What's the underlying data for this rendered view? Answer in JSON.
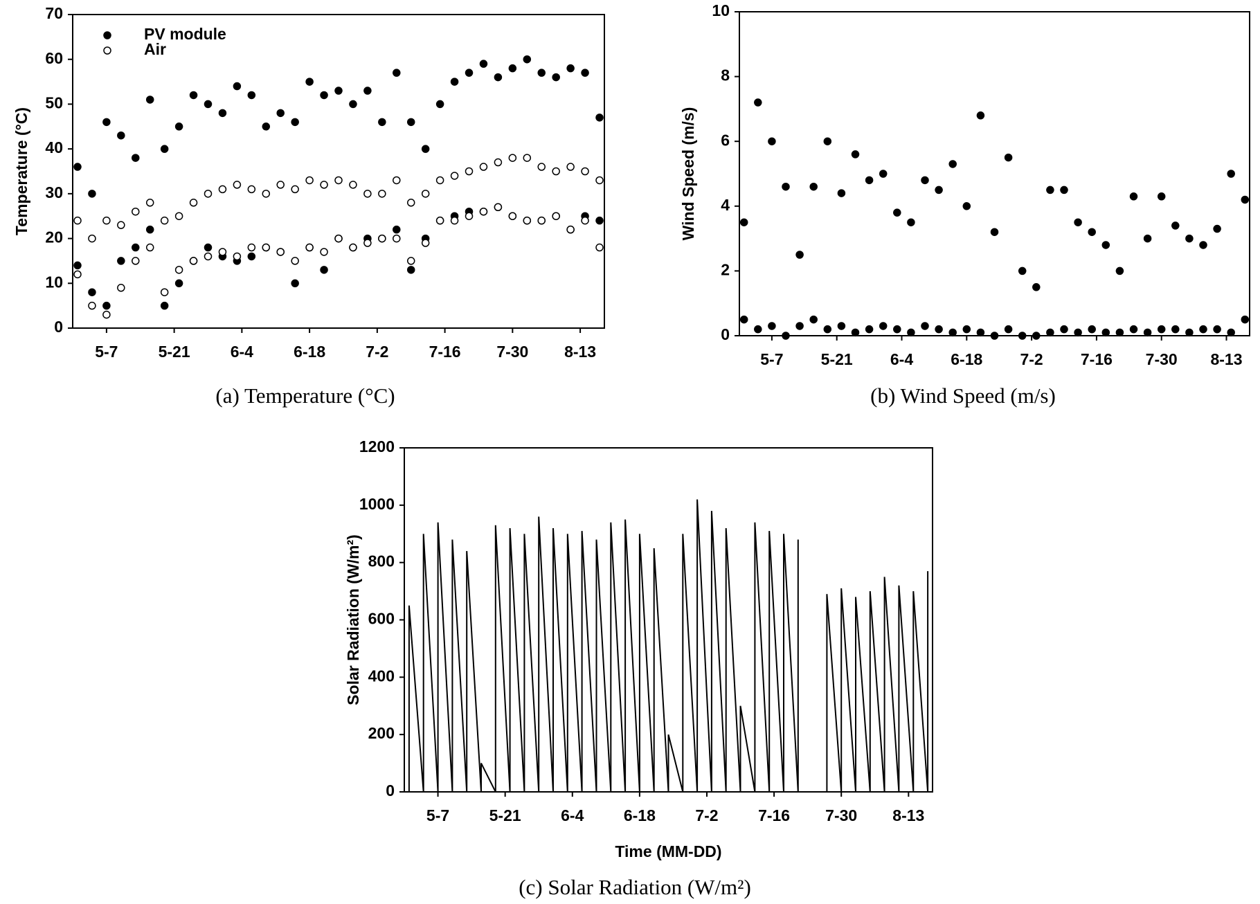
{
  "chart_data": [
    {
      "type": "scatter",
      "caption": "(a) Temperature (°C)",
      "y_label": "Temperature (°C)",
      "legend": "upper left",
      "xlim": [
        "4-30",
        "8-18"
      ],
      "xticks": [
        "5-7",
        "5-21",
        "6-4",
        "6-18",
        "7-2",
        "7-16",
        "7-30",
        "8-13"
      ],
      "ylim": [
        0,
        70
      ],
      "yticks": [
        0,
        10,
        20,
        30,
        40,
        50,
        60,
        70
      ],
      "series": [
        {
          "name": "PV module",
          "color": "#000000",
          "marker": "filled",
          "x": [
            "5-1",
            "5-1",
            "5-4",
            "5-4",
            "5-7",
            "5-7",
            "5-10",
            "5-10",
            "5-13",
            "5-13",
            "5-16",
            "5-16",
            "5-19",
            "5-19",
            "5-22",
            "5-22",
            "5-25",
            "5-25",
            "5-28",
            "5-28",
            "5-31",
            "5-31",
            "6-3",
            "6-3",
            "6-6",
            "6-6",
            "6-9",
            "6-9",
            "6-12",
            "6-12",
            "6-15",
            "6-15",
            "6-18",
            "6-18",
            "6-21",
            "6-21",
            "6-24",
            "6-24",
            "6-27",
            "6-27",
            "6-30",
            "6-30",
            "7-3",
            "7-3",
            "7-6",
            "7-6",
            "7-9",
            "7-9",
            "7-12",
            "7-12",
            "7-15",
            "7-15",
            "7-18",
            "7-18",
            "7-21",
            "7-21",
            "7-24",
            "7-24",
            "7-27",
            "7-27",
            "7-30",
            "7-30",
            "8-2",
            "8-2",
            "8-5",
            "8-5",
            "8-8",
            "8-8",
            "8-11",
            "8-11",
            "8-14",
            "8-14",
            "8-17",
            "8-17"
          ],
          "values": [
            36,
            14,
            30,
            8,
            46,
            5,
            43,
            15,
            38,
            18,
            51,
            22,
            40,
            5,
            45,
            10,
            52,
            15,
            50,
            18,
            48,
            16,
            54,
            15,
            52,
            16,
            45,
            18,
            48,
            17,
            46,
            10,
            55,
            18,
            52,
            13,
            53,
            20,
            50,
            18,
            53,
            20,
            46,
            20,
            57,
            22,
            46,
            13,
            40,
            20,
            50,
            24,
            55,
            25,
            57,
            26,
            59,
            26,
            56,
            27,
            58,
            25,
            60,
            24,
            57,
            24,
            56,
            25,
            58,
            22,
            57,
            25,
            47,
            24
          ]
        },
        {
          "name": "Air",
          "color": "#000000",
          "marker": "open",
          "x": [
            "5-1",
            "5-1",
            "5-4",
            "5-4",
            "5-7",
            "5-7",
            "5-10",
            "5-10",
            "5-13",
            "5-13",
            "5-16",
            "5-16",
            "5-19",
            "5-19",
            "5-22",
            "5-22",
            "5-25",
            "5-25",
            "5-28",
            "5-28",
            "5-31",
            "5-31",
            "6-3",
            "6-3",
            "6-6",
            "6-6",
            "6-9",
            "6-9",
            "6-12",
            "6-12",
            "6-15",
            "6-15",
            "6-18",
            "6-18",
            "6-21",
            "6-21",
            "6-24",
            "6-24",
            "6-27",
            "6-27",
            "6-30",
            "6-30",
            "7-3",
            "7-3",
            "7-6",
            "7-6",
            "7-9",
            "7-9",
            "7-12",
            "7-12",
            "7-15",
            "7-15",
            "7-18",
            "7-18",
            "7-21",
            "7-21",
            "7-24",
            "7-24",
            "7-27",
            "7-27",
            "7-30",
            "7-30",
            "8-2",
            "8-2",
            "8-5",
            "8-5",
            "8-8",
            "8-8",
            "8-11",
            "8-11",
            "8-14",
            "8-14",
            "8-17",
            "8-17"
          ],
          "values": [
            24,
            12,
            20,
            5,
            24,
            3,
            23,
            9,
            26,
            15,
            28,
            18,
            24,
            8,
            25,
            13,
            28,
            15,
            30,
            16,
            31,
            17,
            32,
            16,
            31,
            18,
            30,
            18,
            32,
            17,
            31,
            15,
            33,
            18,
            32,
            17,
            33,
            20,
            32,
            18,
            30,
            19,
            30,
            20,
            33,
            20,
            28,
            15,
            30,
            19,
            33,
            24,
            34,
            24,
            35,
            25,
            36,
            26,
            37,
            27,
            38,
            25,
            38,
            24,
            36,
            24,
            35,
            25,
            36,
            22,
            35,
            24,
            33,
            18
          ]
        }
      ]
    },
    {
      "type": "scatter",
      "caption": "(b) Wind Speed (m/s)",
      "y_label": "Wind Speed (m/s)",
      "xlim": [
        "4-30",
        "8-18"
      ],
      "xticks": [
        "5-7",
        "5-21",
        "6-4",
        "6-18",
        "7-2",
        "7-16",
        "7-30",
        "8-13"
      ],
      "ylim": [
        0,
        10
      ],
      "yticks": [
        0,
        2,
        4,
        6,
        8,
        10
      ],
      "series": [
        {
          "color": "#000000",
          "marker": "filled",
          "x": [
            "5-1",
            "5-1",
            "5-4",
            "5-4",
            "5-7",
            "5-7",
            "5-10",
            "5-10",
            "5-13",
            "5-13",
            "5-16",
            "5-16",
            "5-19",
            "5-19",
            "5-22",
            "5-22",
            "5-25",
            "5-25",
            "5-28",
            "5-28",
            "5-31",
            "5-31",
            "6-3",
            "6-3",
            "6-6",
            "6-6",
            "6-9",
            "6-9",
            "6-12",
            "6-12",
            "6-15",
            "6-15",
            "6-18",
            "6-18",
            "6-21",
            "6-21",
            "6-24",
            "6-24",
            "6-27",
            "6-27",
            "6-30",
            "6-30",
            "7-3",
            "7-3",
            "7-6",
            "7-6",
            "7-9",
            "7-9",
            "7-12",
            "7-12",
            "7-15",
            "7-15",
            "7-18",
            "7-18",
            "7-21",
            "7-21",
            "7-24",
            "7-24",
            "7-27",
            "7-27",
            "7-30",
            "7-30",
            "8-2",
            "8-2",
            "8-5",
            "8-5",
            "8-8",
            "8-8",
            "8-11",
            "8-11",
            "8-14",
            "8-14",
            "8-17",
            "8-17"
          ],
          "values": [
            3.5,
            0.5,
            7.2,
            0.2,
            6.0,
            0.3,
            4.6,
            0,
            2.5,
            0.3,
            4.6,
            0.5,
            6.0,
            0.2,
            4.4,
            0.3,
            5.6,
            0.1,
            4.8,
            0.2,
            5.0,
            0.3,
            3.8,
            0.2,
            3.5,
            0.1,
            4.8,
            0.3,
            4.5,
            0.2,
            5.3,
            0.1,
            4.0,
            0.2,
            6.8,
            0.1,
            3.2,
            0,
            5.5,
            0.2,
            2.0,
            0,
            1.5,
            0,
            4.5,
            0.1,
            4.5,
            0.2,
            3.5,
            0.1,
            3.2,
            0.2,
            2.8,
            0.1,
            2.0,
            0.1,
            4.3,
            0.2,
            3.0,
            0.1,
            4.3,
            0.2,
            3.4,
            0.2,
            3.0,
            0.1,
            2.8,
            0.2,
            3.3,
            0.2,
            5.0,
            0.1,
            4.2,
            0.5
          ]
        }
      ]
    },
    {
      "type": "line",
      "caption": "(c) Solar Radiation (W/m²)",
      "y_label": "Solar Radiation (W/m²)",
      "x_label": "Time (MM-DD)",
      "xlim": [
        "4-30",
        "8-18"
      ],
      "xticks": [
        "5-7",
        "5-21",
        "6-4",
        "6-18",
        "7-2",
        "7-16",
        "7-30",
        "8-13"
      ],
      "ylim": [
        0,
        1200
      ],
      "yticks": [
        0,
        200,
        400,
        600,
        800,
        1000,
        1200
      ],
      "series": [
        {
          "color": "#000000",
          "x": [
            "5-1",
            "5-1",
            "5-4",
            "5-4",
            "5-7",
            "5-7",
            "5-10",
            "5-10",
            "5-13",
            "5-13",
            "5-16",
            "5-16",
            "5-19",
            "5-19",
            "5-22",
            "5-22",
            "5-25",
            "5-25",
            "5-28",
            "5-28",
            "5-31",
            "5-31",
            "6-3",
            "6-3",
            "6-6",
            "6-6",
            "6-9",
            "6-9",
            "6-12",
            "6-12",
            "6-15",
            "6-15",
            "6-18",
            "6-18",
            "6-21",
            "6-21",
            "6-24",
            "6-24",
            "6-27",
            "6-27",
            "6-30",
            "6-30",
            "7-3",
            "7-3",
            "7-6",
            "7-6",
            "7-9",
            "7-9",
            "7-12",
            "7-12",
            "7-15",
            "7-15",
            "7-18",
            "7-18",
            "7-21",
            "7-21",
            "7-24",
            "7-24",
            "7-27",
            "7-27",
            "7-30",
            "7-30",
            "8-2",
            "8-2",
            "8-5",
            "8-5",
            "8-8",
            "8-8",
            "8-11",
            "8-11",
            "8-14",
            "8-14",
            "8-17",
            "8-17"
          ],
          "values": [
            0,
            650,
            0,
            900,
            0,
            940,
            0,
            880,
            0,
            840,
            0,
            100,
            0,
            930,
            0,
            920,
            0,
            900,
            0,
            960,
            0,
            920,
            0,
            900,
            0,
            910,
            0,
            880,
            0,
            940,
            0,
            950,
            0,
            900,
            0,
            850,
            0,
            200,
            0,
            900,
            0,
            1020,
            0,
            980,
            0,
            920,
            0,
            300,
            0,
            940,
            0,
            910,
            0,
            900,
            0,
            880,
            null,
            null,
            0,
            690,
            0,
            710,
            0,
            680,
            0,
            700,
            0,
            750,
            0,
            720,
            0,
            700,
            0,
            770
          ]
        }
      ]
    }
  ]
}
